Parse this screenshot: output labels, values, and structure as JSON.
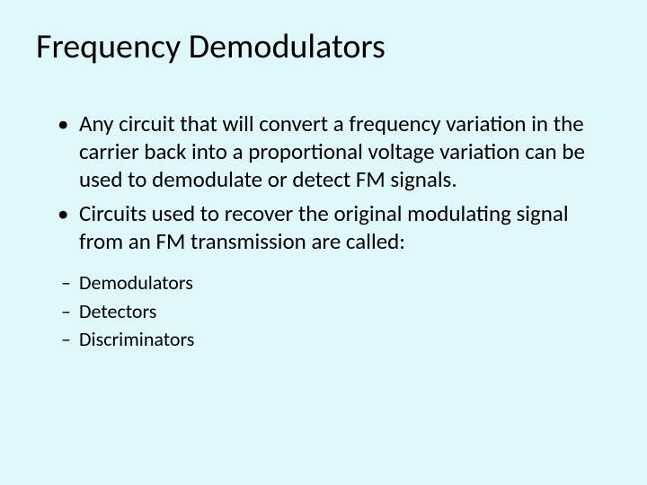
{
  "slide": {
    "title": "Frequency Demodulators",
    "bullets": [
      "Any circuit that will convert a frequency variation in the carrier back into a proportional voltage variation can be used to demodulate or detect FM signals.",
      "Circuits used to recover the original modulating signal from an FM transmission are called:"
    ],
    "subitems": [
      "Demodulators",
      "Detectors",
      "Discriminators"
    ]
  },
  "style": {
    "background_color": "#e0f7fa",
    "title_fontsize": 38,
    "title_color": "#000000",
    "bullet_fontsize": 25,
    "bullet_color": "#000000",
    "sub_fontsize": 22,
    "sub_color": "#000000",
    "font_family": "Calibri"
  }
}
